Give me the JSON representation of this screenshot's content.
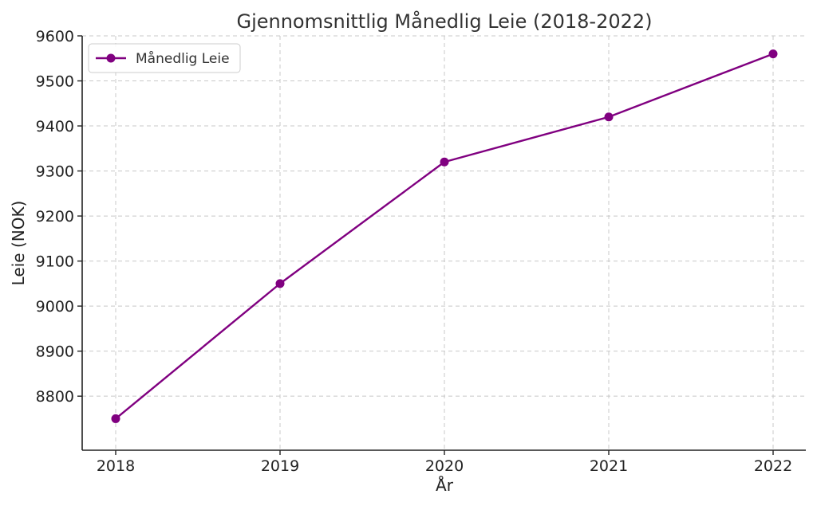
{
  "chart_data": {
    "type": "line",
    "title": "Gjennomsnittlig Månedlig Leie (2018-2022)",
    "xlabel": "År",
    "ylabel": "Leie (NOK)",
    "categories": [
      "2018",
      "2019",
      "2020",
      "2021",
      "2022"
    ],
    "series": [
      {
        "name": "Månedlig Leie",
        "color": "#800080",
        "marker": "circle",
        "values": [
          8750,
          9050,
          9320,
          9420,
          9560
        ]
      }
    ],
    "ylim": [
      8680,
      9600
    ],
    "yticks": [
      8800,
      8900,
      9000,
      9100,
      9200,
      9300,
      9400,
      9500,
      9600
    ],
    "grid": true,
    "legend_position": "top-left"
  }
}
